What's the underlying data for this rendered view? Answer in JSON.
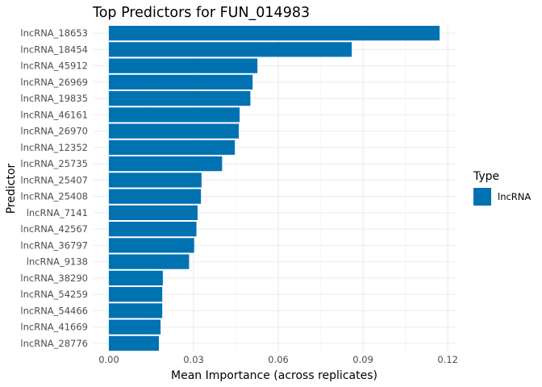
{
  "chart_data": {
    "type": "bar",
    "orientation": "horizontal",
    "title": "Top Predictors for FUN_014983",
    "xlabel": "Mean Importance (across replicates)",
    "ylabel": "Predictor",
    "xlim": [
      0,
      0.1205
    ],
    "xticks": [
      0.0,
      0.03,
      0.06,
      0.09,
      0.12
    ],
    "xtick_labels": [
      "0.00",
      "0.03",
      "0.06",
      "0.09",
      "0.12"
    ],
    "grid": true,
    "legend": {
      "title": "Type",
      "placement": "right",
      "entries": [
        {
          "label": "lncRNA",
          "color": "#0072B2"
        }
      ]
    },
    "bar_color": "#0072B2",
    "categories": [
      "lncRNA_18653",
      "lncRNA_18454",
      "lncRNA_45912",
      "lncRNA_26969",
      "lncRNA_19835",
      "lncRNA_46161",
      "lncRNA_26970",
      "lncRNA_12352",
      "lncRNA_25735",
      "lncRNA_25407",
      "lncRNA_25408",
      "lncRNA_7141",
      "lncRNA_42567",
      "lncRNA_36797",
      "lncRNA_9138",
      "lncRNA_38290",
      "lncRNA_54259",
      "lncRNA_54466",
      "lncRNA_41669",
      "lncRNA_28776"
    ],
    "values": [
      0.1171,
      0.086,
      0.0526,
      0.0509,
      0.0501,
      0.0463,
      0.046,
      0.0446,
      0.0401,
      0.0328,
      0.0326,
      0.0314,
      0.031,
      0.0302,
      0.0284,
      0.0191,
      0.0189,
      0.0189,
      0.0183,
      0.0177
    ]
  }
}
